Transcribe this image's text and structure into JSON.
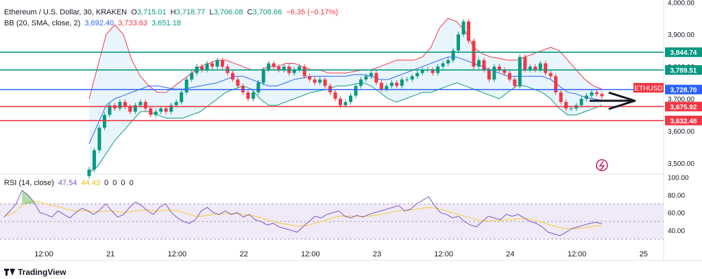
{
  "header": {
    "symbol": "Ethereum / U.S. Dollar, 30, KRAKEN",
    "open_label": "O",
    "open": "3,715.01",
    "high_label": "H",
    "high": "3,718.77",
    "low_label": "L",
    "low": "3,706.08",
    "close_label": "C",
    "close": "3,708.66",
    "change": "−6.35 (−0.17%)",
    "bb_label": "BB (20, SMA, close, 2)",
    "bb_basis": "3,692.40",
    "bb_upper": "3,733.63",
    "bb_lower": "3,651.18",
    "rsi_label": "RSI (14, close)",
    "rsi_value": "47.54",
    "rsi_extra": [
      "44.43",
      "0",
      "0",
      "0",
      "0"
    ]
  },
  "brand": {
    "name": "TradingView"
  },
  "colors": {
    "up": "#089981",
    "down": "#f23645",
    "bb_basis": "#2962ff",
    "bb_upper": "#f23645",
    "bb_lower": "#089981",
    "bb_fill": "#e3f2fd",
    "rsi_line": "#7e57c2",
    "rsi_ma": "#f7d24c",
    "rsi_band": "#efe9f8",
    "level_green": "#089981",
    "level_red": "#f23645",
    "level_blue": "#2962ff"
  },
  "chart_data": [
    {
      "type": "candlestick",
      "y_axis_ticks": [
        "4,000.00",
        "3,900.00",
        "3,800.00",
        "3,700.00",
        "3,600.00",
        "3,500.00"
      ],
      "y_axis_values": [
        4000,
        3900,
        3800,
        3700,
        3600,
        3500
      ],
      "ylim": [
        3468,
        4007
      ],
      "x_axis_ticks": [
        "12:00",
        "21",
        "12:00",
        "22",
        "12:00",
        "23",
        "12:00",
        "24",
        "12:00",
        "25"
      ],
      "x_axis_ticks_hours": [
        -12,
        0,
        12,
        24,
        36,
        48,
        60,
        72,
        84,
        96
      ],
      "x_label_hours_start": -12,
      "horizontal_levels": [
        {
          "value": 3844.74,
          "label": "3,844.74",
          "color": "#089981"
        },
        {
          "value": 3789.51,
          "label": "3,789.51",
          "color": "#089981"
        },
        {
          "value": 3728.7,
          "label": "3,728.70",
          "color": "#2962ff"
        },
        {
          "value": 3675.92,
          "label": "3,675.92",
          "color": "#f23645"
        },
        {
          "value": 3632.48,
          "label": "3,632.48",
          "color": "#f23645"
        }
      ],
      "current_price": {
        "value": 3708.66,
        "label": "ETHUSD"
      },
      "candles_close": [
        3480,
        3540,
        3610,
        3650,
        3680,
        3670,
        3690,
        3675,
        3660,
        3680,
        3690,
        3670,
        3650,
        3660,
        3670,
        3660,
        3680,
        3690,
        3720,
        3760,
        3780,
        3800,
        3790,
        3810,
        3800,
        3820,
        3800,
        3780,
        3760,
        3740,
        3720,
        3700,
        3720,
        3750,
        3790,
        3810,
        3800,
        3790,
        3800,
        3780,
        3790,
        3800,
        3770,
        3760,
        3750,
        3760,
        3740,
        3720,
        3700,
        3680,
        3690,
        3710,
        3740,
        3760,
        3770,
        3780,
        3750,
        3730,
        3740,
        3750,
        3740,
        3760,
        3760,
        3770,
        3780,
        3790,
        3790,
        3780,
        3800,
        3810,
        3820,
        3850,
        3900,
        3940,
        3880,
        3800,
        3820,
        3790,
        3760,
        3800,
        3790,
        3780,
        3760,
        3740,
        3830,
        3790,
        3800,
        3790,
        3810,
        3780,
        3770,
        3720,
        3690,
        3670,
        3670,
        3680,
        3700,
        3710,
        3720,
        3715,
        3708
      ],
      "bb_upper": [
        3700,
        3800,
        3900,
        3930,
        3900,
        3820,
        3770,
        3740,
        3720,
        3720,
        3740,
        3760,
        3780,
        3800,
        3810,
        3820,
        3820,
        3810,
        3800,
        3790,
        3790,
        3800,
        3800,
        3810,
        3810,
        3800,
        3790,
        3790,
        3780,
        3780,
        3780,
        3785,
        3790,
        3790,
        3800,
        3810,
        3820,
        3820,
        3820,
        3830,
        3860,
        3920,
        3950,
        3940,
        3910,
        3860,
        3840,
        3830,
        3825,
        3820,
        3820,
        3830,
        3840,
        3850,
        3860,
        3850,
        3820,
        3790,
        3760,
        3740,
        3730
      ],
      "bb_lower": [
        3470,
        3490,
        3530,
        3570,
        3600,
        3630,
        3660,
        3660,
        3650,
        3640,
        3640,
        3640,
        3650,
        3660,
        3680,
        3700,
        3720,
        3730,
        3740,
        3730,
        3700,
        3680,
        3680,
        3690,
        3700,
        3710,
        3720,
        3725,
        3730,
        3740,
        3740,
        3745,
        3750,
        3740,
        3720,
        3700,
        3690,
        3700,
        3710,
        3720,
        3720,
        3730,
        3740,
        3750,
        3740,
        3730,
        3720,
        3710,
        3700,
        3720,
        3740,
        3740,
        3730,
        3720,
        3700,
        3670,
        3650,
        3650,
        3660,
        3670,
        3680
      ],
      "bb_basis": [
        3560,
        3620,
        3680,
        3700,
        3710,
        3720,
        3730,
        3740,
        3740,
        3735,
        3730,
        3730,
        3735,
        3740,
        3745,
        3750,
        3760,
        3770,
        3770,
        3760,
        3750,
        3740,
        3740,
        3750,
        3760,
        3765,
        3770,
        3770,
        3770,
        3770,
        3770,
        3775,
        3775,
        3770,
        3760,
        3760,
        3770,
        3780,
        3790,
        3800,
        3810,
        3820,
        3830,
        3830,
        3820,
        3810,
        3800,
        3790,
        3780,
        3770,
        3770,
        3770,
        3770,
        3770,
        3760,
        3740,
        3720,
        3715,
        3705,
        3700,
        3695
      ]
    },
    {
      "type": "line",
      "name": "RSI (14, close)",
      "y_axis_ticks": [
        "100.00",
        "80.00",
        "60.00",
        "40.00"
      ],
      "y_axis_values": [
        100,
        80,
        60,
        40
      ],
      "ylim": [
        23,
        102
      ],
      "band": [
        30,
        70
      ],
      "values": [
        55,
        62,
        70,
        85,
        80,
        72,
        60,
        58,
        55,
        62,
        58,
        54,
        60,
        65,
        62,
        58,
        63,
        70,
        62,
        55,
        58,
        66,
        72,
        68,
        62,
        58,
        66,
        70,
        60,
        54,
        50,
        48,
        52,
        62,
        66,
        60,
        58,
        62,
        58,
        60,
        55,
        58,
        52,
        50,
        46,
        48,
        44,
        42,
        40,
        38,
        44,
        50,
        56,
        54,
        58,
        60,
        62,
        56,
        54,
        57,
        55,
        58,
        60,
        62,
        64,
        66,
        68,
        62,
        64,
        70,
        74,
        78,
        68,
        60,
        58,
        54,
        56,
        50,
        46,
        44,
        50,
        56,
        54,
        52,
        58,
        56,
        58,
        54,
        50,
        48,
        44,
        38,
        36,
        34,
        38,
        42,
        44,
        46,
        48,
        49,
        47.5
      ],
      "ma_values": [
        56,
        58,
        62,
        68,
        72,
        73,
        72,
        70,
        68,
        67,
        65,
        63,
        62,
        62,
        62,
        61,
        61,
        62,
        62,
        61,
        60,
        61,
        62,
        63,
        63,
        62,
        62,
        63,
        63,
        62,
        60,
        58,
        56,
        56,
        57,
        58,
        58,
        59,
        59,
        59,
        58,
        57,
        56,
        54,
        52,
        50,
        48,
        47,
        46,
        45,
        45,
        46,
        48,
        50,
        52,
        54,
        56,
        56,
        56,
        56,
        56,
        56,
        57,
        58,
        59,
        61,
        62,
        62,
        63,
        64,
        65,
        66,
        65,
        64,
        62,
        60,
        58,
        56,
        54,
        52,
        51,
        51,
        51,
        51,
        52,
        52,
        53,
        53,
        52,
        51,
        49,
        47,
        45,
        43,
        42,
        42,
        42,
        43,
        44,
        45,
        45.5
      ]
    }
  ]
}
